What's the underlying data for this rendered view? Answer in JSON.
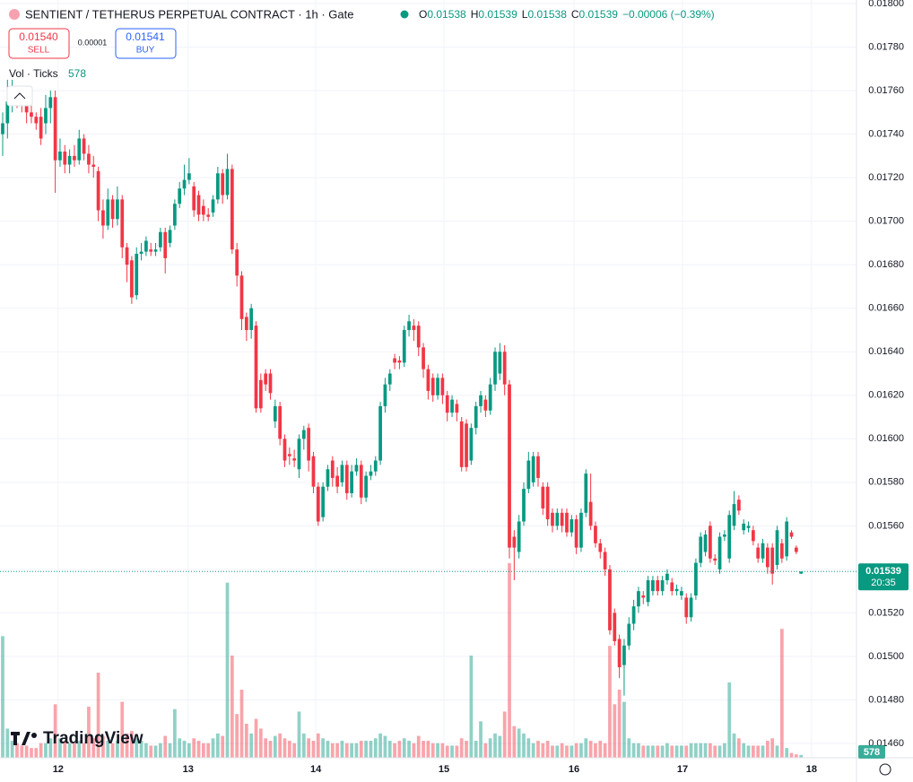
{
  "header": {
    "title": "SENTIENT / TETHERUS PERPETUAL CONTRACT · 1h · Gate",
    "ohlc": [
      {
        "k": "O",
        "v": "0.01538"
      },
      {
        "k": "H",
        "v": "0.01539"
      },
      {
        "k": "L",
        "v": "0.01538"
      },
      {
        "k": "C",
        "v": "0.01539"
      }
    ],
    "change": "−0.00006 (−0.39%)",
    "sell": {
      "price": "0.01540",
      "label": "SELL"
    },
    "spread": "0.00001",
    "buy": {
      "price": "0.01541",
      "label": "BUY"
    },
    "volume_legend": "Vol · Ticks",
    "volume_value": "578",
    "logo": "TradingView"
  },
  "chart_data": {
    "type": "candlestick",
    "up_color": "#089981",
    "down_color": "#f23645",
    "grid": true,
    "xlim": [
      -0.56,
      178.6
    ],
    "ylim": [
      0.0146,
      0.018
    ],
    "vlim": [
      0,
      40000
    ],
    "xticks": [
      {
        "value": 11.6,
        "label": "12"
      },
      {
        "value": 38.8,
        "label": "13"
      },
      {
        "value": 65.5,
        "label": "14"
      },
      {
        "value": 92.3,
        "label": "15"
      },
      {
        "value": 119.5,
        "label": "16"
      },
      {
        "value": 142.2,
        "label": "17"
      },
      {
        "value": 169.2,
        "label": "18"
      }
    ],
    "yticks": [
      {
        "value": 0.018,
        "label": "0.01800"
      },
      {
        "value": 0.0178,
        "label": "0.01780"
      },
      {
        "value": 0.0176,
        "label": "0.01760"
      },
      {
        "value": 0.0174,
        "label": "0.01740"
      },
      {
        "value": 0.0172,
        "label": "0.01720"
      },
      {
        "value": 0.017,
        "label": "0.01700"
      },
      {
        "value": 0.0168,
        "label": "0.01680"
      },
      {
        "value": 0.0166,
        "label": "0.01660"
      },
      {
        "value": 0.0164,
        "label": "0.01640"
      },
      {
        "value": 0.0162,
        "label": "0.01620"
      },
      {
        "value": 0.016,
        "label": "0.01600"
      },
      {
        "value": 0.0158,
        "label": "0.01580"
      },
      {
        "value": 0.0156,
        "label": "0.01560"
      },
      {
        "value": 0.0154,
        "label": "0.01540"
      },
      {
        "value": 0.0152,
        "label": "0.01520"
      },
      {
        "value": 0.015,
        "label": "0.01500"
      },
      {
        "value": 0.0148,
        "label": "0.01480"
      },
      {
        "value": 0.0146,
        "label": "0.01460"
      }
    ],
    "price_label": "0.01539",
    "countdown": "20:35",
    "volume_label": "578",
    "candles": [
      [
        0.0174,
        0.0175,
        0.0173,
        0.01745
      ],
      [
        0.01745,
        0.01765,
        0.01738,
        0.01755
      ],
      [
        0.01755,
        0.01765,
        0.0175,
        0.01757
      ],
      [
        0.01757,
        0.0176,
        0.01752,
        0.01755
      ],
      [
        0.01755,
        0.01757,
        0.0175,
        0.01753
      ],
      [
        0.01753,
        0.01755,
        0.01745,
        0.0175
      ],
      [
        0.0175,
        0.01753,
        0.01745,
        0.01748
      ],
      [
        0.01748,
        0.0175,
        0.01742,
        0.01745
      ],
      [
        0.01748,
        0.01752,
        0.01735,
        0.01738
      ],
      [
        0.01745,
        0.01758,
        0.0174,
        0.01752
      ],
      [
        0.01752,
        0.0176,
        0.01745,
        0.01757
      ],
      [
        0.01757,
        0.0176,
        0.01713,
        0.01728
      ],
      [
        0.01728,
        0.01738,
        0.01725,
        0.01732
      ],
      [
        0.01732,
        0.01735,
        0.01722,
        0.01726
      ],
      [
        0.01726,
        0.01733,
        0.01722,
        0.0173
      ],
      [
        0.0173,
        0.01735,
        0.01725,
        0.01728
      ],
      [
        0.01728,
        0.01742,
        0.01726,
        0.01738
      ],
      [
        0.01738,
        0.0174,
        0.01728,
        0.01731
      ],
      [
        0.01731,
        0.01735,
        0.01722,
        0.01726
      ],
      [
        0.01726,
        0.0173,
        0.0172,
        0.01725
      ],
      [
        0.01723,
        0.01725,
        0.017,
        0.01705
      ],
      [
        0.01705,
        0.0171,
        0.01692,
        0.01698
      ],
      [
        0.01698,
        0.01715,
        0.01696,
        0.0171
      ],
      [
        0.0171,
        0.01712,
        0.01697,
        0.01701
      ],
      [
        0.01701,
        0.01716,
        0.01698,
        0.0171
      ],
      [
        0.0171,
        0.01712,
        0.01683,
        0.01688
      ],
      [
        0.01688,
        0.0169,
        0.01672,
        0.0168
      ],
      [
        0.01682,
        0.01684,
        0.01662,
        0.01665
      ],
      [
        0.01666,
        0.01688,
        0.01664,
        0.01685
      ],
      [
        0.01685,
        0.0169,
        0.01682,
        0.01686
      ],
      [
        0.01686,
        0.01693,
        0.01684,
        0.01691
      ],
      [
        0.01687,
        0.0169,
        0.01684,
        0.01686
      ],
      [
        0.01686,
        0.0169,
        0.01684,
        0.01687
      ],
      [
        0.01688,
        0.01697,
        0.01686,
        0.01695
      ],
      [
        0.01695,
        0.01697,
        0.01676,
        0.01683
      ],
      [
        0.0169,
        0.01698,
        0.01688,
        0.01696
      ],
      [
        0.01698,
        0.0171,
        0.01696,
        0.01708
      ],
      [
        0.01708,
        0.01718,
        0.01706,
        0.01715
      ],
      [
        0.01715,
        0.01726,
        0.01712,
        0.01719
      ],
      [
        0.01719,
        0.01729,
        0.01717,
        0.01722
      ],
      [
        0.01716,
        0.01718,
        0.01702,
        0.01705
      ],
      [
        0.01712,
        0.01714,
        0.017,
        0.01703
      ],
      [
        0.01707,
        0.0171,
        0.017,
        0.01703
      ],
      [
        0.01703,
        0.01706,
        0.017,
        0.01702
      ],
      [
        0.01704,
        0.01712,
        0.01702,
        0.0171
      ],
      [
        0.0171,
        0.01725,
        0.01708,
        0.01722
      ],
      [
        0.01722,
        0.01724,
        0.01708,
        0.01712
      ],
      [
        0.01712,
        0.01731,
        0.0171,
        0.01724
      ],
      [
        0.01724,
        0.01726,
        0.01685,
        0.01687
      ],
      [
        0.01687,
        0.0169,
        0.0167,
        0.01675
      ],
      [
        0.01675,
        0.01677,
        0.0165,
        0.01655
      ],
      [
        0.01656,
        0.01658,
        0.01645,
        0.0165
      ],
      [
        0.0165,
        0.01662,
        0.01646,
        0.0166
      ],
      [
        0.01652,
        0.01654,
        0.01612,
        0.01614
      ],
      [
        0.01627,
        0.0163,
        0.01612,
        0.01614
      ],
      [
        0.0163,
        0.01632,
        0.01622,
        0.01625
      ],
      [
        0.0163,
        0.01632,
        0.01618,
        0.01621
      ],
      [
        0.01608,
        0.01618,
        0.01605,
        0.01615
      ],
      [
        0.01615,
        0.01617,
        0.01597,
        0.016
      ],
      [
        0.016,
        0.01602,
        0.01587,
        0.0159
      ],
      [
        0.01593,
        0.01596,
        0.01588,
        0.01592
      ],
      [
        0.01591,
        0.01595,
        0.01587,
        0.0159
      ],
      [
        0.01586,
        0.01602,
        0.01582,
        0.016
      ],
      [
        0.016,
        0.01606,
        0.01595,
        0.01604
      ],
      [
        0.01605,
        0.01607,
        0.01585,
        0.0159
      ],
      [
        0.01592,
        0.01594,
        0.01575,
        0.01578
      ],
      [
        0.01578,
        0.0158,
        0.0156,
        0.01562
      ],
      [
        0.01564,
        0.0158,
        0.01562,
        0.01578
      ],
      [
        0.01578,
        0.01588,
        0.01576,
        0.01586
      ],
      [
        0.0159,
        0.01592,
        0.01578,
        0.01582
      ],
      [
        0.01583,
        0.01587,
        0.01575,
        0.01578
      ],
      [
        0.0158,
        0.0159,
        0.01578,
        0.01588
      ],
      [
        0.01588,
        0.0159,
        0.01572,
        0.01575
      ],
      [
        0.01575,
        0.01588,
        0.01573,
        0.01585
      ],
      [
        0.01585,
        0.01591,
        0.01583,
        0.01588
      ],
      [
        0.01588,
        0.0159,
        0.0157,
        0.01573
      ],
      [
        0.01573,
        0.01585,
        0.01571,
        0.01583
      ],
      [
        0.01583,
        0.01588,
        0.01581,
        0.01585
      ],
      [
        0.01585,
        0.01592,
        0.01583,
        0.0159
      ],
      [
        0.0159,
        0.01617,
        0.01588,
        0.01615
      ],
      [
        0.01615,
        0.01628,
        0.01612,
        0.01625
      ],
      [
        0.01625,
        0.01632,
        0.01622,
        0.0163
      ],
      [
        0.01637,
        0.01639,
        0.01632,
        0.01635
      ],
      [
        0.01636,
        0.01638,
        0.01632,
        0.01635
      ],
      [
        0.01635,
        0.01652,
        0.01633,
        0.0165
      ],
      [
        0.0165,
        0.01657,
        0.01647,
        0.01654
      ],
      [
        0.01652,
        0.01655,
        0.01645,
        0.0165
      ],
      [
        0.01652,
        0.01654,
        0.01638,
        0.01642
      ],
      [
        0.01642,
        0.01644,
        0.01628,
        0.01632
      ],
      [
        0.01632,
        0.01634,
        0.01618,
        0.01622
      ],
      [
        0.01628,
        0.0163,
        0.01617,
        0.0162
      ],
      [
        0.0162,
        0.0163,
        0.01618,
        0.01628
      ],
      [
        0.01628,
        0.0163,
        0.01616,
        0.0162
      ],
      [
        0.0162,
        0.01622,
        0.01608,
        0.01612
      ],
      [
        0.01612,
        0.0162,
        0.0161,
        0.01618
      ],
      [
        0.01616,
        0.01618,
        0.01608,
        0.01612
      ],
      [
        0.01608,
        0.0161,
        0.01585,
        0.01587
      ],
      [
        0.01607,
        0.01609,
        0.01585,
        0.01587
      ],
      [
        0.0159,
        0.01607,
        0.01588,
        0.01605
      ],
      [
        0.01605,
        0.01617,
        0.01602,
        0.01615
      ],
      [
        0.01615,
        0.01622,
        0.01612,
        0.0162
      ],
      [
        0.01618,
        0.0162,
        0.0161,
        0.01613
      ],
      [
        0.01613,
        0.01628,
        0.01611,
        0.01625
      ],
      [
        0.01625,
        0.01642,
        0.01622,
        0.0164
      ],
      [
        0.0163,
        0.01644,
        0.01627,
        0.0164
      ],
      [
        0.0164,
        0.01643,
        0.0162,
        0.01625
      ],
      [
        0.01625,
        0.01627,
        0.01545,
        0.0155
      ],
      [
        0.01555,
        0.01558,
        0.01535,
        0.0155
      ],
      [
        0.01548,
        0.01565,
        0.01545,
        0.01562
      ],
      [
        0.01562,
        0.0158,
        0.0156,
        0.01577
      ],
      [
        0.01577,
        0.01594,
        0.01575,
        0.0159
      ],
      [
        0.0158,
        0.01594,
        0.01578,
        0.01592
      ],
      [
        0.01592,
        0.01594,
        0.01578,
        0.01582
      ],
      [
        0.01578,
        0.0158,
        0.01565,
        0.01568
      ],
      [
        0.01578,
        0.0158,
        0.0156,
        0.01563
      ],
      [
        0.01566,
        0.01568,
        0.01557,
        0.0156
      ],
      [
        0.0156,
        0.01568,
        0.01558,
        0.01566
      ],
      [
        0.01566,
        0.01568,
        0.01557,
        0.0156
      ],
      [
        0.01566,
        0.01568,
        0.01555,
        0.01557
      ],
      [
        0.01557,
        0.01565,
        0.01555,
        0.01563
      ],
      [
        0.01563,
        0.01565,
        0.01547,
        0.0155
      ],
      [
        0.0155,
        0.01568,
        0.01548,
        0.01566
      ],
      [
        0.01566,
        0.01586,
        0.01564,
        0.01584
      ],
      [
        0.01571,
        0.01584,
        0.01558,
        0.0156
      ],
      [
        0.0156,
        0.01562,
        0.0155,
        0.01552
      ],
      [
        0.01552,
        0.01554,
        0.01545,
        0.01548
      ],
      [
        0.01548,
        0.0155,
        0.01537,
        0.0154
      ],
      [
        0.0154,
        0.01542,
        0.0151,
        0.01512
      ],
      [
        0.0152,
        0.01522,
        0.01505,
        0.01507
      ],
      [
        0.01508,
        0.0151,
        0.0149,
        0.01495
      ],
      [
        0.01496,
        0.01508,
        0.01482,
        0.01505
      ],
      [
        0.01505,
        0.01518,
        0.01503,
        0.01515
      ],
      [
        0.01515,
        0.01526,
        0.01512,
        0.01523
      ],
      [
        0.01523,
        0.01532,
        0.0152,
        0.0153
      ],
      [
        0.01528,
        0.0153,
        0.01524,
        0.01527
      ],
      [
        0.01525,
        0.01537,
        0.01523,
        0.01535
      ],
      [
        0.0153,
        0.01537,
        0.01528,
        0.01535
      ],
      [
        0.01535,
        0.01537,
        0.01528,
        0.0153
      ],
      [
        0.0153,
        0.01537,
        0.01528,
        0.01535
      ],
      [
        0.01535,
        0.0154,
        0.01533,
        0.01538
      ],
      [
        0.01534,
        0.01536,
        0.01528,
        0.0153
      ],
      [
        0.0153,
        0.01533,
        0.01528,
        0.01531
      ],
      [
        0.01528,
        0.01532,
        0.01526,
        0.0153
      ],
      [
        0.01527,
        0.01529,
        0.01515,
        0.01518
      ],
      [
        0.01518,
        0.01529,
        0.01516,
        0.01527
      ],
      [
        0.01528,
        0.01545,
        0.01526,
        0.01543
      ],
      [
        0.01543,
        0.01557,
        0.01541,
        0.01555
      ],
      [
        0.01548,
        0.01558,
        0.01546,
        0.01556
      ],
      [
        0.0156,
        0.01562,
        0.01543,
        0.01545
      ],
      [
        0.01545,
        0.01547,
        0.01542,
        0.01544
      ],
      [
        0.0154,
        0.01557,
        0.01538,
        0.01555
      ],
      [
        0.01555,
        0.01558,
        0.01553,
        0.01556
      ],
      [
        0.01545,
        0.01567,
        0.01543,
        0.01565
      ],
      [
        0.0156,
        0.01576,
        0.01558,
        0.0157
      ],
      [
        0.01572,
        0.01574,
        0.01565,
        0.01567
      ],
      [
        0.01558,
        0.01563,
        0.01556,
        0.01561
      ],
      [
        0.01559,
        0.01562,
        0.01557,
        0.0156
      ],
      [
        0.01558,
        0.0156,
        0.01551,
        0.01553
      ],
      [
        0.0155,
        0.01552,
        0.01543,
        0.01545
      ],
      [
        0.01545,
        0.01554,
        0.01543,
        0.01552
      ],
      [
        0.0155,
        0.01552,
        0.01538,
        0.01541
      ],
      [
        0.0155,
        0.01552,
        0.01533,
        0.01538
      ],
      [
        0.01542,
        0.0156,
        0.0154,
        0.01558
      ],
      [
        0.01552,
        0.01554,
        0.01543,
        0.01545
      ],
      [
        0.01546,
        0.01564,
        0.01544,
        0.01562
      ],
      [
        0.01557,
        0.01558,
        0.01554,
        0.01555
      ],
      [
        0.0155,
        0.01551,
        0.01547,
        0.01548
      ],
      [
        0.01538,
        0.01539,
        0.01538,
        0.01539
      ]
    ],
    "volumes": [
      25000,
      6000,
      3500,
      3000,
      2500,
      2500,
      2000,
      2000,
      3000,
      3000,
      4000,
      11000,
      4000,
      3500,
      3000,
      3000,
      3500,
      3000,
      10500,
      4000,
      17500,
      4500,
      3500,
      3000,
      3500,
      11500,
      5000,
      5500,
      4000,
      3500,
      3000,
      2500,
      2500,
      3000,
      4500,
      3000,
      10000,
      4000,
      3500,
      3000,
      4000,
      3500,
      3000,
      3000,
      4000,
      5000,
      4500,
      36000,
      21000,
      9000,
      14000,
      7000,
      5000,
      8000,
      6000,
      4000,
      3500,
      4500,
      5000,
      4000,
      3500,
      3000,
      9500,
      5000,
      4000,
      3500,
      5000,
      4000,
      3500,
      3000,
      3000,
      3500,
      3000,
      3000,
      3000,
      3500,
      3500,
      3500,
      4000,
      5000,
      4500,
      3500,
      3000,
      3500,
      4000,
      3500,
      3000,
      4500,
      3500,
      3500,
      3000,
      3000,
      3000,
      2500,
      2500,
      2500,
      4000,
      3500,
      21000,
      3500,
      7500,
      3000,
      4000,
      5000,
      4500,
      9500,
      40000,
      6500,
      6000,
      5000,
      4000,
      3000,
      3500,
      3000,
      3500,
      2500,
      2500,
      3000,
      2500,
      2500,
      3000,
      3000,
      4000,
      3500,
      3000,
      3500,
      3000,
      23000,
      11000,
      14000,
      11500,
      4000,
      3000,
      3000,
      2500,
      2500,
      2500,
      2500,
      2500,
      3000,
      2500,
      2500,
      2500,
      2500,
      3000,
      3000,
      3000,
      3000,
      3000,
      2500,
      2500,
      3000,
      15500,
      5000,
      4000,
      3000,
      2500,
      2500,
      2500,
      2500,
      3500,
      4000,
      2500,
      26500,
      2000,
      1000,
      700,
      578
    ]
  }
}
